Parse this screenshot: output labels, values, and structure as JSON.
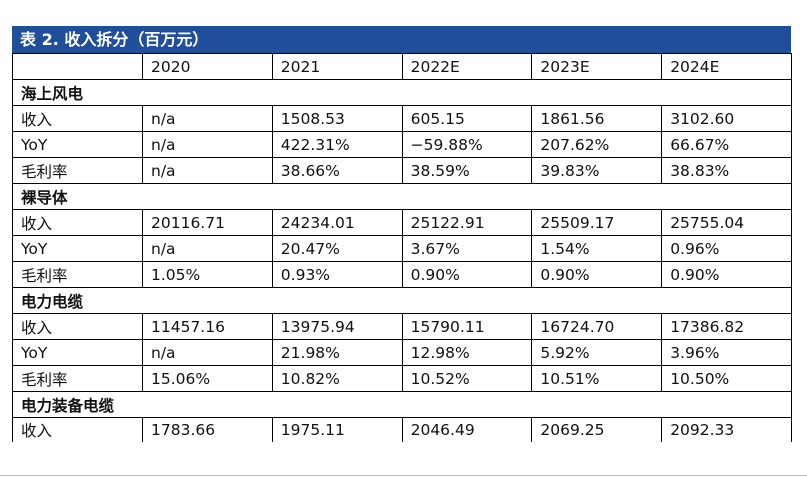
{
  "table": {
    "title": "表 2. 收入拆分（百万元）",
    "headers": [
      "",
      "2020",
      "2021",
      "2022E",
      "2023E",
      "2024E"
    ],
    "sections": [
      {
        "name": "海上风电",
        "rows": [
          {
            "label": "收入",
            "values": [
              "n/a",
              "1508.53",
              "605.15",
              "1861.56",
              "3102.60"
            ]
          },
          {
            "label": "YoY",
            "values": [
              "n/a",
              "422.31%",
              "−59.88%",
              "207.62%",
              "66.67%"
            ]
          },
          {
            "label": "毛利率",
            "values": [
              "n/a",
              "38.66%",
              "38.59%",
              "39.83%",
              "38.83%"
            ]
          }
        ]
      },
      {
        "name": "裸导体",
        "rows": [
          {
            "label": "收入",
            "values": [
              "20116.71",
              "24234.01",
              "25122.91",
              "25509.17",
              "25755.04"
            ]
          },
          {
            "label": "YoY",
            "values": [
              "n/a",
              "20.47%",
              "3.67%",
              "1.54%",
              "0.96%"
            ]
          },
          {
            "label": "毛利率",
            "values": [
              "1.05%",
              "0.93%",
              "0.90%",
              "0.90%",
              "0.90%"
            ]
          }
        ]
      },
      {
        "name": "电力电缆",
        "rows": [
          {
            "label": "收入",
            "values": [
              "11457.16",
              "13975.94",
              "15790.11",
              "16724.70",
              "17386.82"
            ]
          },
          {
            "label": "YoY",
            "values": [
              "n/a",
              "21.98%",
              "12.98%",
              "5.92%",
              "3.96%"
            ]
          },
          {
            "label": "毛利率",
            "values": [
              "15.06%",
              "10.82%",
              "10.52%",
              "10.51%",
              "10.50%"
            ]
          }
        ]
      },
      {
        "name": "电力装备电缆",
        "rows": [
          {
            "label": "收入",
            "values": [
              "1783.66",
              "1975.11",
              "2046.49",
              "2069.25",
              "2092.33"
            ]
          }
        ]
      }
    ]
  },
  "colors": {
    "title_bar": "#1f4e9a",
    "title_text": "#ffffff"
  }
}
